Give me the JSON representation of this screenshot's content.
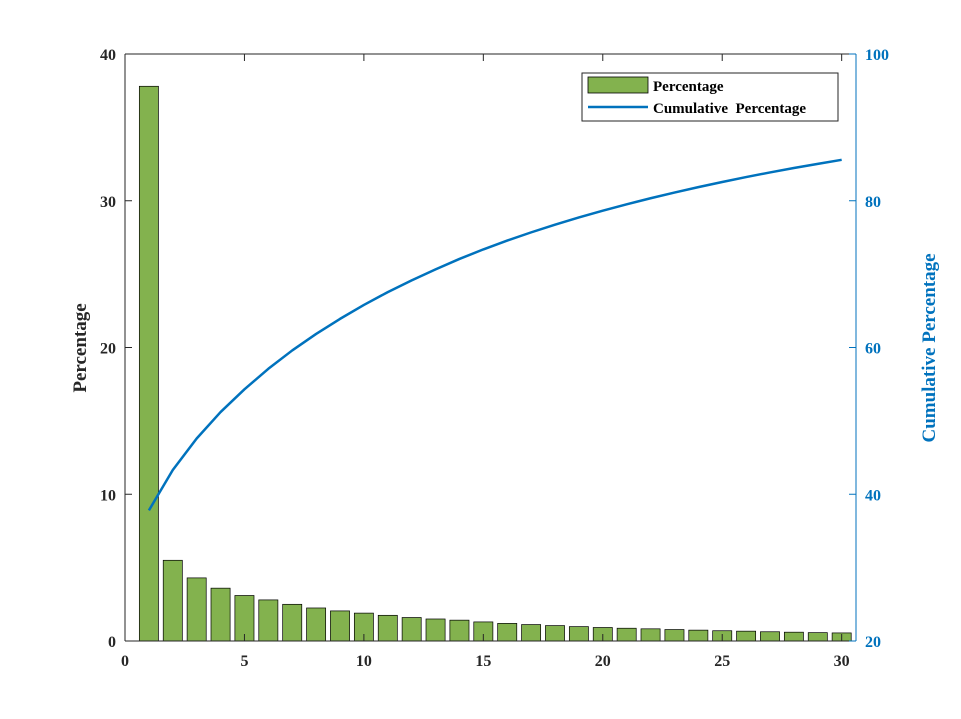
{
  "chart_data": {
    "type": "bar",
    "x": [
      1,
      2,
      3,
      4,
      5,
      6,
      7,
      8,
      9,
      10,
      11,
      12,
      13,
      14,
      15,
      16,
      17,
      18,
      19,
      20,
      21,
      22,
      23,
      24,
      25,
      26,
      27,
      28,
      29,
      30
    ],
    "xlim": [
      0,
      30.6
    ],
    "xticks": [
      0,
      5,
      10,
      15,
      20,
      25,
      30
    ],
    "ylabel": "Percentage",
    "ylim": [
      0,
      40
    ],
    "yticks": [
      0,
      10,
      20,
      30,
      40
    ],
    "y2label": "Cumulative  Percentage",
    "y2lim": [
      20,
      100
    ],
    "y2ticks": [
      20,
      40,
      60,
      80,
      100
    ],
    "legend_location": "top-right",
    "grid": false,
    "series": [
      {
        "name": "Percentage",
        "type": "bar",
        "axis": "left",
        "color": "#83B24E",
        "values": [
          37.8,
          5.5,
          4.3,
          3.6,
          3.1,
          2.8,
          2.5,
          2.25,
          2.05,
          1.9,
          1.75,
          1.6,
          1.5,
          1.42,
          1.3,
          1.2,
          1.12,
          1.05,
          0.98,
          0.92,
          0.87,
          0.83,
          0.78,
          0.74,
          0.7,
          0.67,
          0.63,
          0.6,
          0.57,
          0.55
        ]
      },
      {
        "name": "Cumulative  Percentage",
        "type": "line",
        "axis": "right",
        "color": "#0072BD",
        "values": [
          37.8,
          43.3,
          47.6,
          51.2,
          54.3,
          57.1,
          59.6,
          61.85,
          63.9,
          65.8,
          67.55,
          69.15,
          70.65,
          72.07,
          73.37,
          74.57,
          75.69,
          76.74,
          77.72,
          78.64,
          79.51,
          80.34,
          81.12,
          81.86,
          82.56,
          83.23,
          83.86,
          84.46,
          85.03,
          85.58
        ]
      }
    ]
  }
}
